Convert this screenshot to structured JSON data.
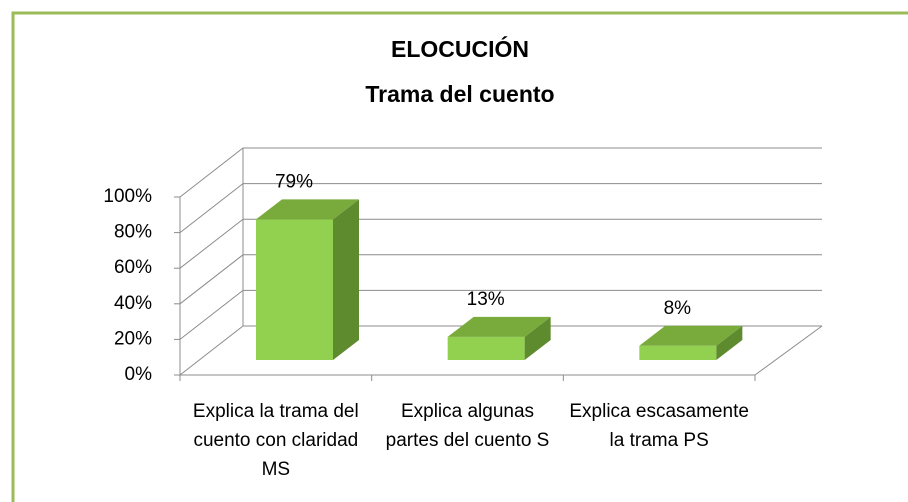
{
  "chart_data": {
    "type": "bar3d",
    "title": "ELOCUCIÓN",
    "subtitle": "Trama del cuento",
    "categories": [
      "Explica la trama del cuento con claridad MS",
      "Explica algunas partes del cuento S",
      "Explica escasamente la trama PS"
    ],
    "values": [
      79,
      13,
      8
    ],
    "value_labels": [
      "79%",
      "13%",
      "8%"
    ],
    "colors": {
      "front": "#92d050",
      "top": "#78aa3c",
      "side": "#5f8b2f"
    },
    "ylim": [
      0,
      100
    ],
    "yticks": [
      {
        "value": 0,
        "label": "0%"
      },
      {
        "value": 20,
        "label": "20%"
      },
      {
        "value": 40,
        "label": "40%"
      },
      {
        "value": 60,
        "label": "60%"
      },
      {
        "value": 80,
        "label": "80%"
      },
      {
        "value": 100,
        "label": "100%"
      }
    ],
    "grid": true
  }
}
